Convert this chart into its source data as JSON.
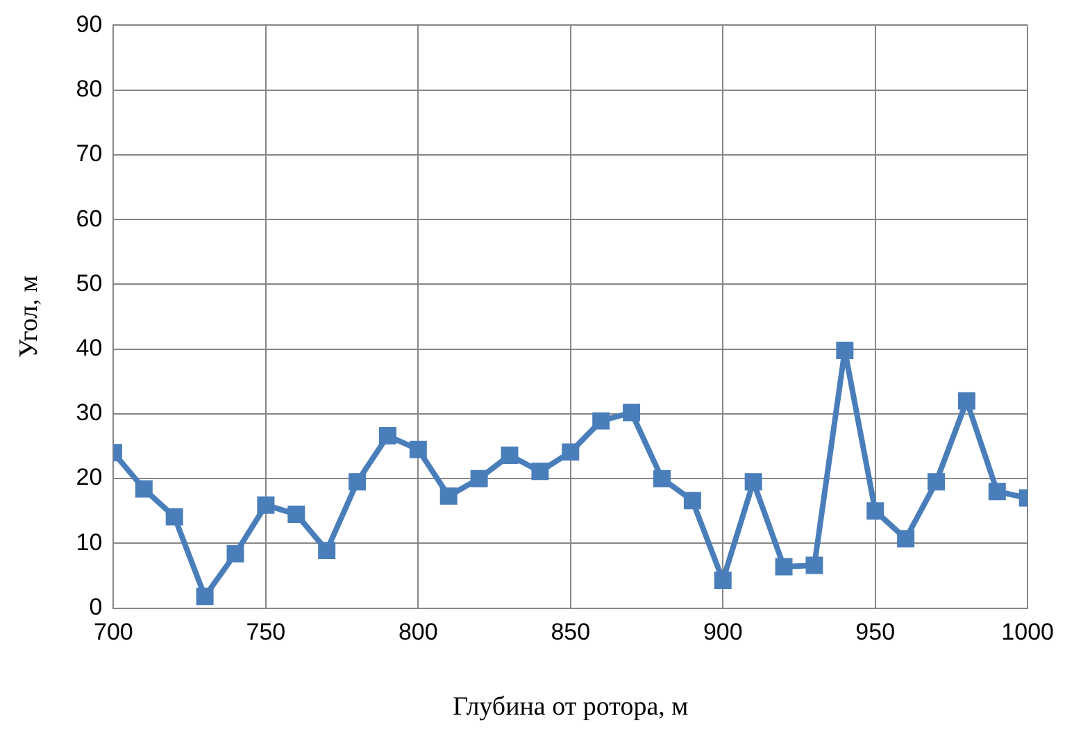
{
  "chart_data": {
    "type": "line",
    "xlabel": "Глубина от ротора, м",
    "ylabel": "Угол, м",
    "x": [
      700,
      710,
      720,
      730,
      740,
      750,
      760,
      770,
      780,
      790,
      800,
      810,
      820,
      830,
      840,
      850,
      860,
      870,
      880,
      890,
      900,
      910,
      920,
      930,
      940,
      950,
      960,
      970,
      980,
      990,
      1000
    ],
    "series": [
      {
        "color": "#4a7ebb",
        "values": [
          24,
          18.4,
          14.1,
          1.8,
          8.4,
          15.9,
          14.5,
          8.9,
          19.5,
          26.6,
          24.5,
          17.3,
          20,
          23.6,
          21.1,
          24.1,
          28.9,
          30.2,
          20,
          16.6,
          4.3,
          19.5,
          6.4,
          6.6,
          39.8,
          15,
          10.7,
          19.5,
          32,
          18,
          17
        ]
      }
    ],
    "xlim": [
      700,
      1000
    ],
    "xticks": [
      700,
      750,
      800,
      850,
      900,
      950,
      1000
    ],
    "ylim": [
      0,
      90
    ],
    "yticks": [
      0,
      10,
      20,
      30,
      40,
      50,
      60,
      70,
      80,
      90
    ],
    "grid": true,
    "legend": false,
    "marker": "square",
    "line_style": "solid"
  }
}
